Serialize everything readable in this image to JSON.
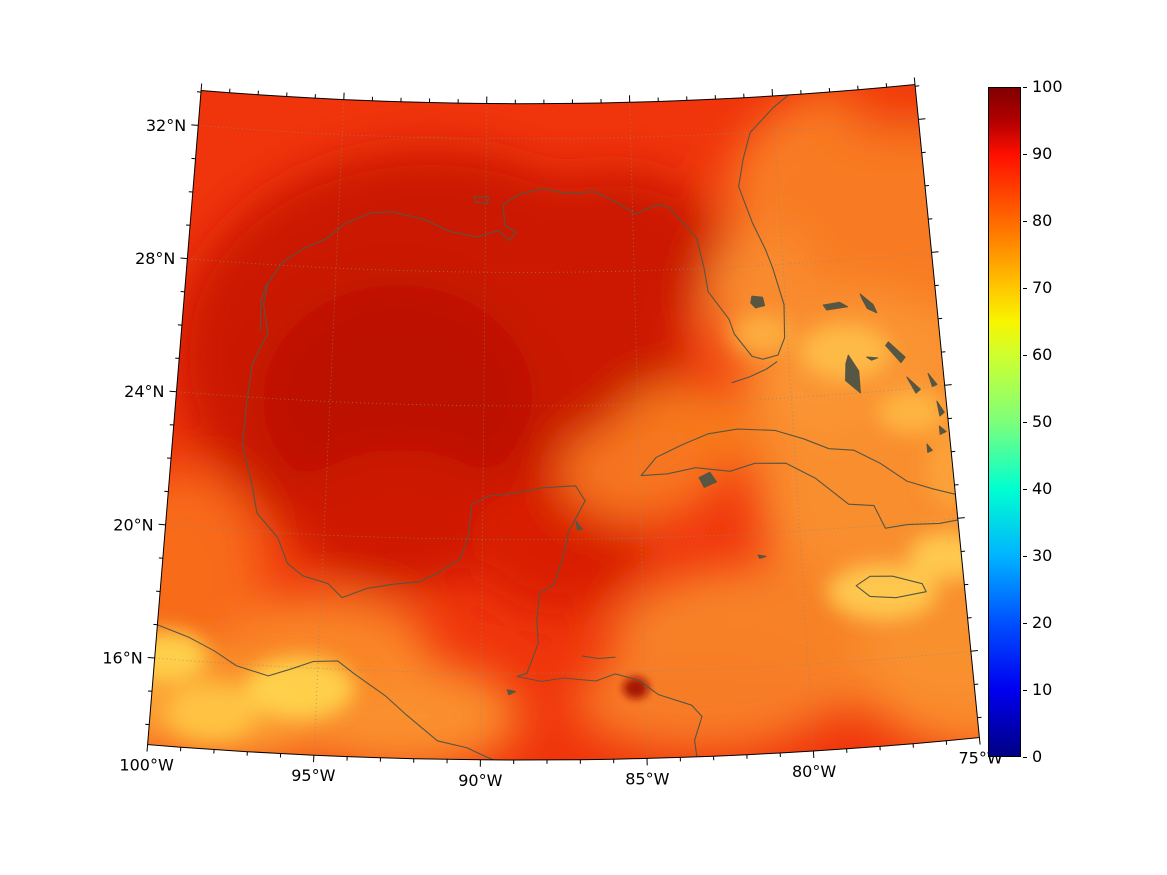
{
  "figure": {
    "background": "#ffffff"
  },
  "axes": {
    "lon_ticks": [
      {
        "lon": -100,
        "label": "100°W"
      },
      {
        "lon": -95,
        "label": "95°W"
      },
      {
        "lon": -90,
        "label": "90°W"
      },
      {
        "lon": -85,
        "label": "85°W"
      },
      {
        "lon": -80,
        "label": "80°W"
      },
      {
        "lon": -75,
        "label": "75°W"
      }
    ],
    "lat_ticks": [
      {
        "lat": 32,
        "label": "32°N"
      },
      {
        "lat": 28,
        "label": "28°N"
      },
      {
        "lat": 24,
        "label": "24°N"
      },
      {
        "lat": 20,
        "label": "20°N"
      },
      {
        "lat": 16,
        "label": "16°N"
      }
    ]
  },
  "colorbar": {
    "min": 0,
    "max": 100,
    "step": 10,
    "colormap": "jet",
    "tick_labels": [
      "100",
      "90",
      "80",
      "70",
      "60",
      "50",
      "40",
      "30",
      "20",
      "10",
      "0"
    ]
  },
  "chart_data": {
    "type": "heatmap",
    "projection": "conic (Lambert-conformal-like), Gulf of Mexico / Caribbean region",
    "extent": {
      "lon_min": -100,
      "lon_max": -75,
      "lat_min": 13.4,
      "lat_max": 33.05
    },
    "value_range": [
      0,
      100
    ],
    "colors": {
      "field_base": "#f0350c",
      "coastline": "#565643",
      "graticule": "#8c8c74",
      "border": "#000000"
    },
    "grid": {
      "lons": [
        -100,
        -95,
        -90,
        -85,
        -80,
        -75
      ],
      "lats": [
        32,
        28,
        24,
        20,
        16
      ],
      "values_percent": [
        [
          84,
          84,
          85,
          84,
          78,
          74
        ],
        [
          85,
          88,
          90,
          87,
          79,
          73
        ],
        [
          83,
          90,
          91,
          84,
          74,
          71
        ],
        [
          79,
          87,
          89,
          84,
          72,
          67
        ],
        [
          66,
          64,
          83,
          84,
          71,
          64
        ]
      ]
    },
    "graticule": {
      "lat_lines": [
        16,
        20,
        24,
        28,
        32
      ],
      "lon_lines": [
        -95,
        -90,
        -85,
        -80
      ]
    },
    "coastlines": [
      {
        "name": "us-gulf-atlantic-coast",
        "closed": false,
        "fill": false,
        "pts": [
          [
            -97.15,
            25.95
          ],
          [
            -97.35,
            26.8
          ],
          [
            -97.25,
            27.45
          ],
          [
            -96.8,
            28.1
          ],
          [
            -96.1,
            28.55
          ],
          [
            -95.4,
            28.85
          ],
          [
            -94.75,
            29.35
          ],
          [
            -93.9,
            29.7
          ],
          [
            -93.2,
            29.75
          ],
          [
            -92.1,
            29.55
          ],
          [
            -91.2,
            29.2
          ],
          [
            -90.3,
            29.05
          ],
          [
            -89.55,
            29.25
          ],
          [
            -89.2,
            28.95
          ],
          [
            -88.95,
            29.2
          ],
          [
            -89.35,
            29.4
          ],
          [
            -89.4,
            30.05
          ],
          [
            -88.8,
            30.35
          ],
          [
            -88.05,
            30.5
          ],
          [
            -87.2,
            30.35
          ],
          [
            -86.3,
            30.4
          ],
          [
            -85.6,
            30.1
          ],
          [
            -84.9,
            29.7
          ],
          [
            -84.2,
            29.95
          ],
          [
            -83.8,
            29.9
          ],
          [
            -83.2,
            29.3
          ],
          [
            -82.85,
            28.9
          ],
          [
            -82.65,
            28.0
          ],
          [
            -82.55,
            27.3
          ],
          [
            -81.9,
            26.45
          ],
          [
            -81.75,
            26.0
          ],
          [
            -81.2,
            25.3
          ],
          [
            -80.85,
            25.2
          ],
          [
            -80.35,
            25.3
          ],
          [
            -80.1,
            25.8
          ],
          [
            -80.05,
            26.8
          ],
          [
            -80.35,
            27.9
          ],
          [
            -80.55,
            28.45
          ],
          [
            -80.95,
            29.3
          ],
          [
            -81.35,
            30.4
          ],
          [
            -81.15,
            31.2
          ],
          [
            -80.85,
            32.0
          ],
          [
            -80.0,
            32.7
          ],
          [
            -79.35,
            33.1
          ]
        ]
      },
      {
        "name": "mexico-centam-coast",
        "closed": false,
        "fill": false,
        "pts": [
          [
            -97.15,
            25.95
          ],
          [
            -97.6,
            25.0
          ],
          [
            -97.7,
            23.8
          ],
          [
            -97.75,
            22.55
          ],
          [
            -97.35,
            21.35
          ],
          [
            -97.15,
            20.55
          ],
          [
            -96.45,
            19.85
          ],
          [
            -96.1,
            19.1
          ],
          [
            -95.6,
            18.75
          ],
          [
            -94.8,
            18.55
          ],
          [
            -94.35,
            18.15
          ],
          [
            -93.6,
            18.45
          ],
          [
            -92.8,
            18.6
          ],
          [
            -91.95,
            18.7
          ],
          [
            -91.35,
            19.0
          ],
          [
            -90.7,
            19.4
          ],
          [
            -90.45,
            20.1
          ],
          [
            -90.35,
            21.05
          ],
          [
            -89.8,
            21.3
          ],
          [
            -88.9,
            21.4
          ],
          [
            -88.1,
            21.55
          ],
          [
            -87.05,
            21.6
          ],
          [
            -86.75,
            21.15
          ],
          [
            -87.3,
            20.2
          ],
          [
            -87.45,
            19.55
          ],
          [
            -87.75,
            18.65
          ],
          [
            -88.2,
            18.4
          ],
          [
            -88.3,
            17.55
          ],
          [
            -88.25,
            16.9
          ],
          [
            -88.6,
            16.0
          ],
          [
            -88.9,
            15.9
          ],
          [
            -88.15,
            15.75
          ],
          [
            -87.5,
            15.85
          ],
          [
            -86.5,
            15.75
          ],
          [
            -85.9,
            15.95
          ],
          [
            -85.2,
            15.75
          ],
          [
            -84.6,
            15.3
          ],
          [
            -83.6,
            14.95
          ],
          [
            -83.3,
            14.6
          ],
          [
            -83.55,
            13.9
          ],
          [
            -83.5,
            13.4
          ]
        ]
      },
      {
        "name": "pacific-coast",
        "closed": false,
        "fill": false,
        "pts": [
          [
            -100.0,
            17.0
          ],
          [
            -99.0,
            16.7
          ],
          [
            -98.2,
            16.35
          ],
          [
            -97.5,
            15.95
          ],
          [
            -96.5,
            15.7
          ],
          [
            -95.8,
            15.95
          ],
          [
            -95.15,
            16.2
          ],
          [
            -94.4,
            16.25
          ],
          [
            -93.9,
            15.9
          ],
          [
            -92.9,
            15.25
          ],
          [
            -92.25,
            14.7
          ],
          [
            -91.3,
            13.95
          ],
          [
            -90.4,
            13.75
          ],
          [
            -89.85,
            13.5
          ],
          [
            -89.6,
            13.4
          ]
        ]
      },
      {
        "name": "cuba",
        "closed": true,
        "fill": false,
        "pts": [
          [
            -84.95,
            21.87
          ],
          [
            -84.45,
            22.4
          ],
          [
            -83.6,
            22.75
          ],
          [
            -82.75,
            23.05
          ],
          [
            -81.8,
            23.15
          ],
          [
            -80.6,
            23.05
          ],
          [
            -79.7,
            22.75
          ],
          [
            -78.9,
            22.4
          ],
          [
            -78.1,
            22.3
          ],
          [
            -77.3,
            21.85
          ],
          [
            -76.5,
            21.25
          ],
          [
            -75.7,
            20.95
          ],
          [
            -75.0,
            20.72
          ],
          [
            -75.0,
            19.95
          ],
          [
            -75.6,
            19.9
          ],
          [
            -76.6,
            19.95
          ],
          [
            -77.3,
            19.9
          ],
          [
            -77.6,
            20.6
          ],
          [
            -78.4,
            20.7
          ],
          [
            -79.4,
            21.55
          ],
          [
            -80.3,
            22.05
          ],
          [
            -81.3,
            22.1
          ],
          [
            -82.1,
            21.9
          ],
          [
            -83.2,
            22.05
          ],
          [
            -84.1,
            21.9
          ]
        ]
      },
      {
        "name": "isla-juventud",
        "closed": true,
        "fill": true,
        "pts": [
          [
            -83.1,
            21.75
          ],
          [
            -82.75,
            21.9
          ],
          [
            -82.55,
            21.6
          ],
          [
            -82.95,
            21.45
          ]
        ]
      },
      {
        "name": "jamaica",
        "closed": true,
        "fill": false,
        "pts": [
          [
            -78.35,
            18.25
          ],
          [
            -77.9,
            18.5
          ],
          [
            -77.2,
            18.45
          ],
          [
            -76.3,
            18.15
          ],
          [
            -76.2,
            17.9
          ],
          [
            -77.15,
            17.8
          ],
          [
            -77.95,
            17.9
          ]
        ]
      },
      {
        "name": "grand-bahama",
        "closed": true,
        "fill": true,
        "pts": [
          [
            -78.75,
            26.7
          ],
          [
            -78.2,
            26.75
          ],
          [
            -77.95,
            26.6
          ],
          [
            -78.65,
            26.55
          ]
        ]
      },
      {
        "name": "abaco",
        "closed": true,
        "fill": true,
        "pts": [
          [
            -77.5,
            26.95
          ],
          [
            -77.1,
            26.6
          ],
          [
            -77.0,
            26.35
          ],
          [
            -77.3,
            26.5
          ],
          [
            -77.45,
            26.8
          ]
        ]
      },
      {
        "name": "andros",
        "closed": true,
        "fill": true,
        "pts": [
          [
            -78.05,
            25.15
          ],
          [
            -77.75,
            24.65
          ],
          [
            -77.75,
            24.0
          ],
          [
            -78.2,
            24.4
          ],
          [
            -78.15,
            24.9
          ]
        ]
      },
      {
        "name": "eleuthera",
        "closed": true,
        "fill": true,
        "pts": [
          [
            -76.7,
            25.45
          ],
          [
            -76.2,
            24.95
          ],
          [
            -76.35,
            24.8
          ],
          [
            -76.8,
            25.35
          ]
        ]
      },
      {
        "name": "new-providence",
        "closed": true,
        "fill": true,
        "pts": [
          [
            -77.45,
            25.05
          ],
          [
            -77.1,
            25.0
          ],
          [
            -77.3,
            24.95
          ]
        ]
      },
      {
        "name": "exuma-chain",
        "closed": true,
        "fill": true,
        "pts": [
          [
            -76.2,
            24.35
          ],
          [
            -75.8,
            23.95
          ],
          [
            -75.95,
            23.85
          ]
        ]
      },
      {
        "name": "cat-island",
        "closed": true,
        "fill": true,
        "pts": [
          [
            -75.5,
            24.4
          ],
          [
            -75.25,
            24.05
          ],
          [
            -75.4,
            24.0
          ]
        ]
      },
      {
        "name": "crooked-island",
        "closed": true,
        "fill": true,
        "pts": [
          [
            -75.3,
            22.8
          ],
          [
            -75.1,
            22.62
          ],
          [
            -75.3,
            22.55
          ]
        ]
      },
      {
        "name": "ragged-island",
        "closed": true,
        "fill": true,
        "pts": [
          [
            -75.75,
            22.3
          ],
          [
            -75.6,
            22.1
          ],
          [
            -75.75,
            22.05
          ]
        ]
      },
      {
        "name": "long-island",
        "closed": true,
        "fill": true,
        "pts": [
          [
            -75.3,
            23.55
          ],
          [
            -75.1,
            23.2
          ],
          [
            -75.25,
            23.1
          ]
        ]
      },
      {
        "name": "grand-cayman",
        "closed": true,
        "fill": true,
        "pts": [
          [
            -81.35,
            19.35
          ],
          [
            -81.1,
            19.3
          ],
          [
            -81.3,
            19.25
          ]
        ]
      },
      {
        "name": "cozumel",
        "closed": true,
        "fill": true,
        "pts": [
          [
            -87.05,
            20.55
          ],
          [
            -86.85,
            20.3
          ],
          [
            -87.0,
            20.28
          ]
        ]
      },
      {
        "name": "bay-islands",
        "closed": false,
        "fill": false,
        "pts": [
          [
            -86.9,
            16.5
          ],
          [
            -86.4,
            16.42
          ],
          [
            -85.9,
            16.45
          ]
        ]
      },
      {
        "name": "lake-okeechobee",
        "closed": true,
        "fill": true,
        "pts": [
          [
            -81.1,
            27.1
          ],
          [
            -80.75,
            27.05
          ],
          [
            -80.7,
            26.8
          ],
          [
            -81.0,
            26.75
          ],
          [
            -81.15,
            26.9
          ]
        ]
      },
      {
        "name": "lake-pontchartrain",
        "closed": true,
        "fill": false,
        "pts": [
          [
            -90.4,
            30.25
          ],
          [
            -89.9,
            30.25
          ],
          [
            -89.95,
            30.05
          ],
          [
            -90.35,
            30.1
          ]
        ]
      },
      {
        "name": "lake-izabal",
        "closed": true,
        "fill": true,
        "pts": [
          [
            -89.2,
            15.5
          ],
          [
            -88.95,
            15.45
          ],
          [
            -89.15,
            15.35
          ]
        ]
      },
      {
        "name": "texas-barrier-lagoon",
        "closed": false,
        "fill": false,
        "pts": [
          [
            -97.4,
            26.0
          ],
          [
            -97.45,
            26.9
          ],
          [
            -97.3,
            27.4
          ]
        ]
      },
      {
        "name": "florida-keys",
        "closed": false,
        "fill": false,
        "pts": [
          [
            -80.4,
            25.1
          ],
          [
            -80.75,
            24.9
          ],
          [
            -81.3,
            24.7
          ],
          [
            -81.9,
            24.55
          ]
        ]
      }
    ]
  }
}
